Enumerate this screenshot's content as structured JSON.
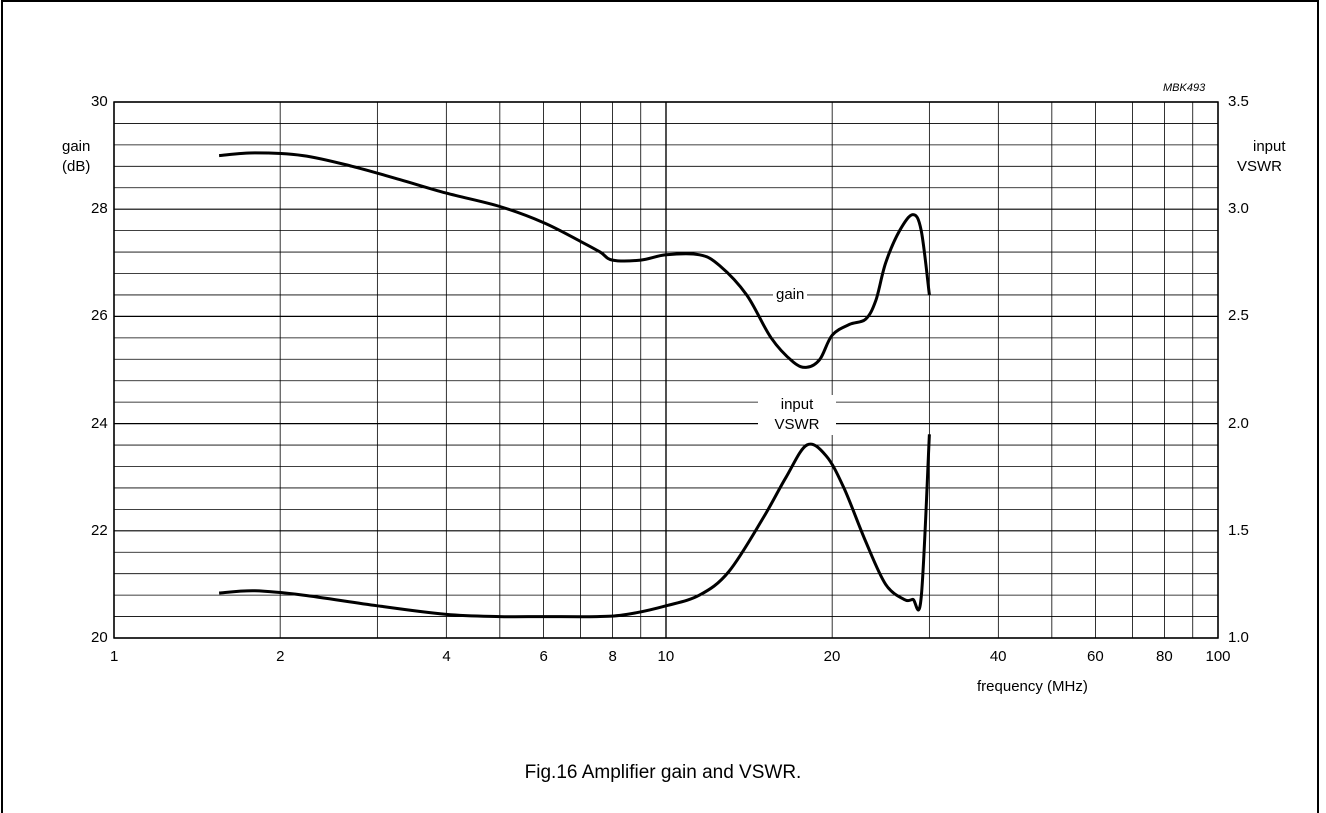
{
  "chart_data": {
    "type": "line",
    "code": "MBK493",
    "caption": "Fig.16  Amplifier gain and VSWR.",
    "xlabel": "frequency (MHz)",
    "xscale": "log",
    "xlim": [
      1,
      100
    ],
    "xticks": [
      1,
      2,
      4,
      6,
      8,
      10,
      20,
      40,
      60,
      80,
      100
    ],
    "ylabel_left": [
      "gain",
      "(dB)"
    ],
    "ylim_left": [
      20,
      30
    ],
    "yticks_left": [
      20,
      22,
      24,
      26,
      28,
      30
    ],
    "ylabel_right": [
      "input",
      "VSWR"
    ],
    "ylim_right": [
      1.0,
      3.5
    ],
    "yticks_right": [
      "1.0",
      "1.5",
      "2.0",
      "2.5",
      "3.0",
      "3.5"
    ],
    "grid": true,
    "series": [
      {
        "name": "gain",
        "axis": "left",
        "points": [
          [
            1.55,
            29.0
          ],
          [
            1.8,
            29.05
          ],
          [
            2.2,
            29.0
          ],
          [
            2.7,
            28.8
          ],
          [
            3.3,
            28.55
          ],
          [
            4.0,
            28.3
          ],
          [
            5.0,
            28.05
          ],
          [
            6.0,
            27.75
          ],
          [
            7.0,
            27.4
          ],
          [
            7.6,
            27.2
          ],
          [
            8.0,
            27.05
          ],
          [
            9.0,
            27.05
          ],
          [
            10.0,
            27.15
          ],
          [
            11.5,
            27.15
          ],
          [
            12.5,
            26.95
          ],
          [
            14.0,
            26.4
          ],
          [
            15.5,
            25.6
          ],
          [
            17.0,
            25.15
          ],
          [
            18.0,
            25.05
          ],
          [
            19.0,
            25.2
          ],
          [
            20.0,
            25.65
          ],
          [
            21.5,
            25.85
          ],
          [
            23.0,
            25.95
          ],
          [
            24.0,
            26.3
          ],
          [
            25.0,
            27.0
          ],
          [
            26.5,
            27.6
          ],
          [
            28.0,
            27.9
          ],
          [
            29.0,
            27.6
          ],
          [
            30.0,
            26.4
          ]
        ],
        "label": "gain"
      },
      {
        "name": "input VSWR",
        "axis": "right",
        "points": [
          [
            1.55,
            1.21
          ],
          [
            1.8,
            1.22
          ],
          [
            2.2,
            1.2
          ],
          [
            3.0,
            1.15
          ],
          [
            4.0,
            1.11
          ],
          [
            5.0,
            1.1
          ],
          [
            6.0,
            1.1
          ],
          [
            7.5,
            1.1
          ],
          [
            8.5,
            1.11
          ],
          [
            10.0,
            1.15
          ],
          [
            11.5,
            1.2
          ],
          [
            13.0,
            1.31
          ],
          [
            15.0,
            1.56
          ],
          [
            16.5,
            1.75
          ],
          [
            18.0,
            1.9
          ],
          [
            19.5,
            1.85
          ],
          [
            21.0,
            1.7
          ],
          [
            23.0,
            1.45
          ],
          [
            25.0,
            1.25
          ],
          [
            27.0,
            1.18
          ],
          [
            28.0,
            1.18
          ],
          [
            29.0,
            1.19
          ],
          [
            30.0,
            1.95
          ]
        ],
        "label": "input VSWR"
      }
    ]
  }
}
